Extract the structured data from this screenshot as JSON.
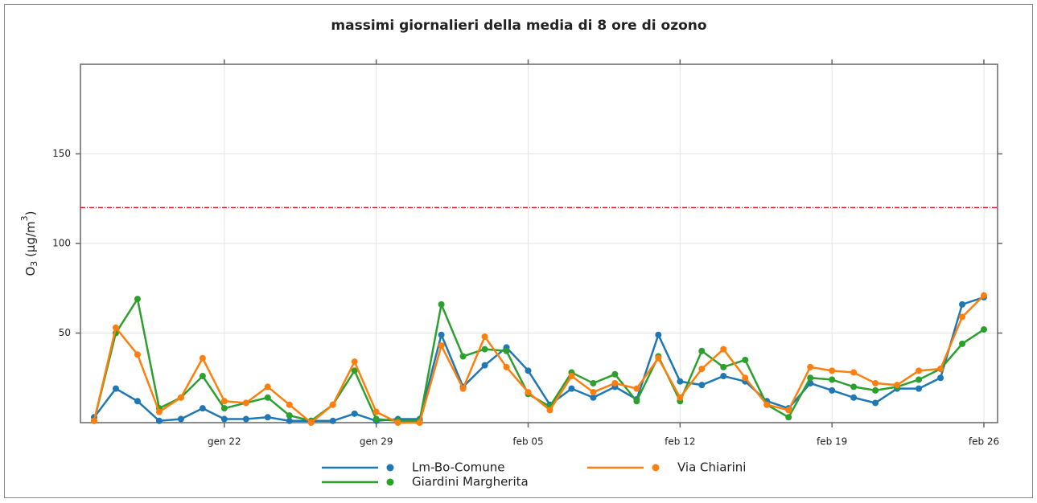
{
  "chart_data": {
    "type": "line",
    "title": "massimi giornalieri della media di 8 ore di ozono",
    "y_label": [
      "O",
      "3",
      " (µg/m",
      "3",
      ")"
    ],
    "categories": [
      null,
      null,
      null,
      null,
      null,
      null,
      "gen 22",
      null,
      null,
      null,
      null,
      null,
      null,
      "gen 29",
      null,
      null,
      null,
      null,
      null,
      null,
      "feb 05",
      null,
      null,
      null,
      null,
      null,
      null,
      "feb 12",
      null,
      null,
      null,
      null,
      null,
      null,
      "feb 19",
      null,
      null,
      null,
      null,
      null,
      null,
      "feb 26"
    ],
    "series": [
      {
        "name": "Lm-Bo-Comune",
        "color": "#1f77b4",
        "values": [
          3,
          19,
          12,
          1,
          2,
          8,
          2,
          2,
          3,
          1,
          1,
          1,
          5,
          1,
          2,
          2,
          49,
          20,
          32,
          42,
          29,
          10,
          19,
          14,
          20,
          13,
          49,
          23,
          21,
          26,
          23,
          12,
          8,
          22,
          18,
          14,
          11,
          19,
          19,
          25,
          66,
          70
        ]
      },
      {
        "name": "Giardini Margherita",
        "color": "#2ca02c",
        "values": [
          1,
          50,
          69,
          8,
          14,
          26,
          8,
          11,
          14,
          4,
          1,
          10,
          29,
          2,
          1,
          1,
          66,
          37,
          41,
          40,
          16,
          9,
          28,
          22,
          27,
          12,
          37,
          12,
          40,
          31,
          35,
          10,
          3,
          25,
          24,
          20,
          18,
          20,
          24,
          30,
          44,
          52
        ]
      },
      {
        "name": "Via Chiarini",
        "color": "#ff7f0e",
        "values": [
          1,
          53,
          38,
          6,
          14,
          36,
          12,
          11,
          20,
          10,
          0,
          10,
          34,
          6,
          0,
          0,
          43,
          19,
          48,
          31,
          17,
          7,
          26,
          17,
          22,
          19,
          36,
          14,
          30,
          41,
          25,
          10,
          7,
          31,
          29,
          28,
          22,
          21,
          29,
          30,
          59,
          71
        ]
      }
    ],
    "threshold": 120,
    "threshold_color": "#e31a1c",
    "ylim": [
      0,
      200
    ],
    "yticks": [
      50,
      100,
      150
    ],
    "grid": true
  }
}
